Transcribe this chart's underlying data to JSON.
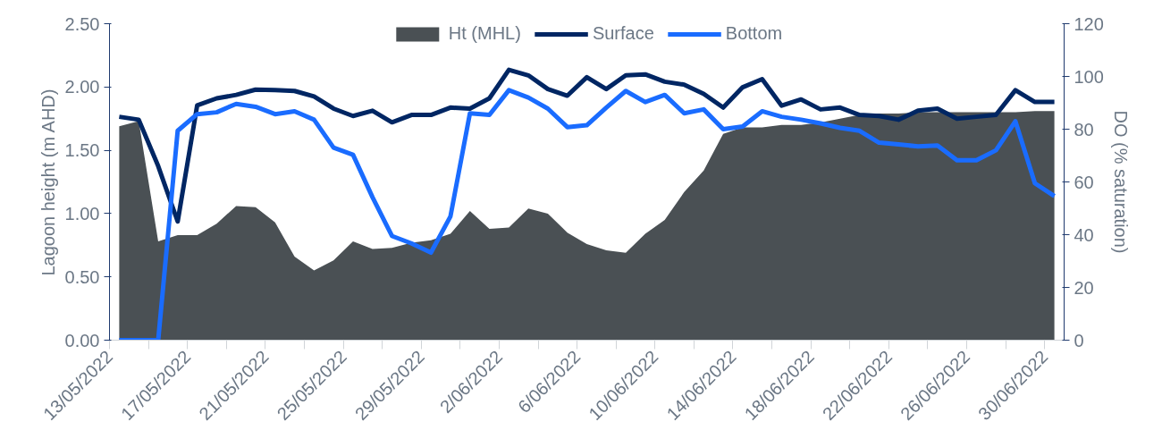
{
  "chart_data": {
    "type": "line",
    "ylabel": "Lagoon height (m AHD)",
    "y2label": "DO (% saturation)",
    "x": [
      "2022-05-13T12:00",
      "2022-05-14T12:00",
      "2022-05-15T12:00",
      "2022-05-16T12:00",
      "2022-05-17T12:00",
      "2022-05-18T12:00",
      "2022-05-19T12:00",
      "2022-05-20T12:00",
      "2022-05-21T12:00",
      "2022-05-22T12:00",
      "2022-05-23T12:00",
      "2022-05-24T12:00",
      "2022-05-25T12:00",
      "2022-05-26T12:00",
      "2022-05-27T12:00",
      "2022-05-28T12:00",
      "2022-05-29T12:00",
      "2022-05-30T12:00",
      "2022-05-31T12:00",
      "2022-06-01T12:00",
      "2022-06-02T12:00",
      "2022-06-03T12:00",
      "2022-06-04T12:00",
      "2022-06-05T12:00",
      "2022-06-06T12:00",
      "2022-06-07T12:00",
      "2022-06-08T12:00",
      "2022-06-09T12:00",
      "2022-06-10T12:00",
      "2022-06-11T12:00",
      "2022-06-12T12:00",
      "2022-06-13T12:00",
      "2022-06-14T12:00",
      "2022-06-15T12:00",
      "2022-06-16T12:00",
      "2022-06-17T12:00",
      "2022-06-18T12:00",
      "2022-06-19T12:00",
      "2022-06-20T12:00",
      "2022-06-21T12:00",
      "2022-06-22T12:00",
      "2022-06-23T12:00",
      "2022-06-24T12:00",
      "2022-06-25T12:00",
      "2022-06-26T12:00",
      "2022-06-27T12:00",
      "2022-06-28T12:00",
      "2022-06-29T12:00",
      "2022-06-30T12:00"
    ],
    "xlim": [
      "2022-05-13",
      "2022-07-01"
    ],
    "xticks": [
      {
        "value": "2022-05-13",
        "label": "13/05/2022"
      },
      {
        "value": "2022-05-15",
        "label": null
      },
      {
        "value": "2022-05-17",
        "label": "17/05/2022"
      },
      {
        "value": "2022-05-19",
        "label": null
      },
      {
        "value": "2022-05-21",
        "label": "21/05/2022"
      },
      {
        "value": "2022-05-23",
        "label": null
      },
      {
        "value": "2022-05-25",
        "label": "25/05/2022"
      },
      {
        "value": "2022-05-27",
        "label": null
      },
      {
        "value": "2022-05-29",
        "label": "29/05/2022"
      },
      {
        "value": "2022-05-31",
        "label": null
      },
      {
        "value": "2022-06-02",
        "label": "2/06/2022"
      },
      {
        "value": "2022-06-04",
        "label": null
      },
      {
        "value": "2022-06-06",
        "label": "6/06/2022"
      },
      {
        "value": "2022-06-08",
        "label": null
      },
      {
        "value": "2022-06-10",
        "label": "10/06/2022"
      },
      {
        "value": "2022-06-12",
        "label": null
      },
      {
        "value": "2022-06-14",
        "label": "14/06/2022"
      },
      {
        "value": "2022-06-16",
        "label": null
      },
      {
        "value": "2022-06-18",
        "label": "18/06/2022"
      },
      {
        "value": "2022-06-20",
        "label": null
      },
      {
        "value": "2022-06-22",
        "label": "22/06/2022"
      },
      {
        "value": "2022-06-24",
        "label": null
      },
      {
        "value": "2022-06-26",
        "label": "26/06/2022"
      },
      {
        "value": "2022-06-28",
        "label": null
      },
      {
        "value": "2022-06-30",
        "label": "30/06/2022"
      }
    ],
    "ylim": [
      0,
      2.5
    ],
    "yticks": [
      {
        "value": 0,
        "label": "0.00"
      },
      {
        "value": 0.5,
        "label": "0.50"
      },
      {
        "value": 1,
        "label": "1.00"
      },
      {
        "value": 1.5,
        "label": "1.50"
      },
      {
        "value": 2,
        "label": "2.00"
      },
      {
        "value": 2.5,
        "label": "2.50"
      }
    ],
    "y2lim": [
      0,
      120
    ],
    "y2ticks": [
      0,
      20,
      40,
      60,
      80,
      100,
      120
    ],
    "grid": false,
    "legend": "top",
    "series": [
      {
        "name": "Ht (MHL)",
        "type": "area",
        "color": "#4a5054",
        "values": [
          1.69,
          1.73,
          0.78,
          0.83,
          0.83,
          0.92,
          1.06,
          1.05,
          0.93,
          0.66,
          0.55,
          0.63,
          0.78,
          0.72,
          0.73,
          0.77,
          0.79,
          0.84,
          1.02,
          0.88,
          0.89,
          1.04,
          1.0,
          0.85,
          0.76,
          0.71,
          0.69,
          0.84,
          0.95,
          1.17,
          1.34,
          1.63,
          1.68,
          1.68,
          1.7,
          1.7,
          1.72,
          1.75,
          1.78,
          1.79,
          1.79,
          1.8,
          1.8,
          1.8,
          1.8,
          1.8,
          1.8,
          1.81,
          1.81
        ]
      },
      {
        "name": "Surface",
        "axis": "y2",
        "color": "#002663",
        "values": [
          84.7,
          83.6,
          66,
          45,
          89,
          91.7,
          93,
          95,
          94.8,
          94.5,
          92.4,
          87.8,
          85,
          87,
          82.6,
          85.4,
          85.4,
          88.2,
          87.8,
          91.7,
          102.5,
          100.4,
          95.2,
          92.7,
          99.7,
          95.2,
          100.4,
          100.8,
          98,
          96.9,
          93.4,
          88.2,
          95.9,
          99,
          88.9,
          91.3,
          87.5,
          88.2,
          85.4,
          85,
          83.6,
          87,
          87.8,
          84,
          84.7,
          85.4,
          94.8,
          90.3,
          90.3
        ]
      },
      {
        "name": "Bottom",
        "axis": "y2",
        "color": "#1a6cff",
        "values": [
          0,
          0,
          0,
          79.4,
          85.7,
          86.4,
          89.6,
          88.5,
          85.7,
          86.8,
          83.6,
          73,
          70.3,
          54.2,
          39.5,
          36.7,
          33.2,
          46.9,
          86,
          85.4,
          94.8,
          92,
          87.8,
          80.8,
          81.5,
          88.2,
          94.5,
          90.3,
          93,
          86,
          87.5,
          80,
          81,
          86.8,
          84.7,
          83.6,
          82.2,
          80.5,
          79.4,
          74.9,
          74.2,
          73.5,
          73.8,
          68.2,
          68.2,
          72,
          83,
          59.5,
          54.6
        ]
      }
    ]
  }
}
